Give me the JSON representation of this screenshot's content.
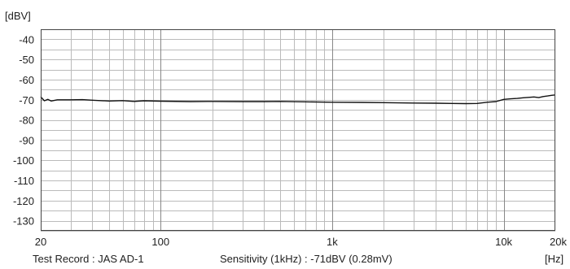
{
  "chart_data": {
    "type": "line",
    "ylabel": "[dBV]",
    "xlabel": "[Hz]",
    "x_scale": "log",
    "xlim": [
      20,
      20000
    ],
    "ylim": [
      -135,
      -35
    ],
    "y_ticks": [
      -40,
      -50,
      -60,
      -70,
      -80,
      -90,
      -100,
      -110,
      -120,
      -130
    ],
    "y_tick_labels": [
      "-40",
      "-50",
      "-60",
      "-70",
      "-80",
      "-90",
      "-100",
      "-110",
      "-120",
      "-130"
    ],
    "x_tick_values": [
      20,
      100,
      1000,
      10000,
      20000
    ],
    "x_tick_labels": [
      "20",
      "100",
      "1k",
      "10k",
      "20k"
    ],
    "grid": true,
    "series": [
      {
        "x": [
          20,
          21,
          22,
          23,
          25,
          30,
          35,
          40,
          50,
          60,
          70,
          80,
          100,
          150,
          200,
          300,
          400,
          500,
          700,
          1000,
          1500,
          2000,
          3000,
          4000,
          5000,
          6000,
          7000,
          8000,
          9000,
          10000,
          11000,
          12000,
          13000,
          14000,
          15000,
          16000,
          17000,
          18000,
          19000,
          20000
        ],
        "y": [
          -68.5,
          -70.5,
          -69.8,
          -70.6,
          -70.0,
          -70.0,
          -69.9,
          -70.2,
          -70.6,
          -70.4,
          -70.8,
          -70.5,
          -70.7,
          -70.9,
          -70.8,
          -70.9,
          -70.9,
          -70.8,
          -71.0,
          -71.2,
          -71.3,
          -71.4,
          -71.6,
          -71.7,
          -71.8,
          -71.9,
          -71.8,
          -71.2,
          -70.9,
          -69.8,
          -69.5,
          -69.3,
          -69.0,
          -68.8,
          -68.6,
          -68.9,
          -68.4,
          -68.1,
          -67.8,
          -67.6
        ]
      }
    ]
  },
  "footer": {
    "test_record": "Test Record : JAS AD-1",
    "sensitivity": "Sensitivity (1kHz) : -71dBV (0.28mV)",
    "unit_label": "[Hz]"
  }
}
